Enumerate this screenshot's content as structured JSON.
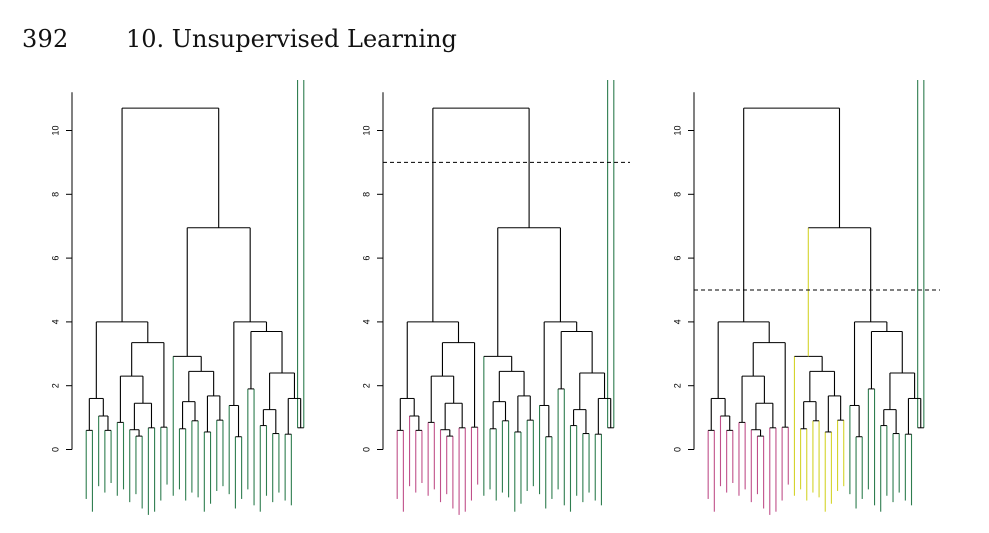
{
  "header": {
    "page_number": "392",
    "chapter_title": "10.  Unsupervised Learning"
  },
  "chart_data": [
    {
      "type": "dendrogram",
      "panel": "left",
      "y_ticks": [
        "0",
        "2",
        "4",
        "6",
        "8",
        "10"
      ],
      "ylim": [
        0,
        11.2
      ],
      "grid": false,
      "cut_height": null,
      "leaf_colors": [
        "#2e7d4f"
      ]
    },
    {
      "type": "dendrogram",
      "panel": "middle",
      "y_ticks": [
        "0",
        "2",
        "4",
        "6",
        "8",
        "10"
      ],
      "ylim": [
        0,
        11.2
      ],
      "grid": false,
      "cut_height": 9,
      "leaf_colors": [
        "#c0508a",
        "#2e7d4f"
      ]
    },
    {
      "type": "dendrogram",
      "panel": "right",
      "y_ticks": [
        "0",
        "2",
        "4",
        "6",
        "8",
        "10"
      ],
      "ylim": [
        0,
        11.2
      ],
      "grid": false,
      "cut_height": 5,
      "leaf_colors": [
        "#c0508a",
        "#d4d42a",
        "#2e7d4f"
      ]
    }
  ]
}
